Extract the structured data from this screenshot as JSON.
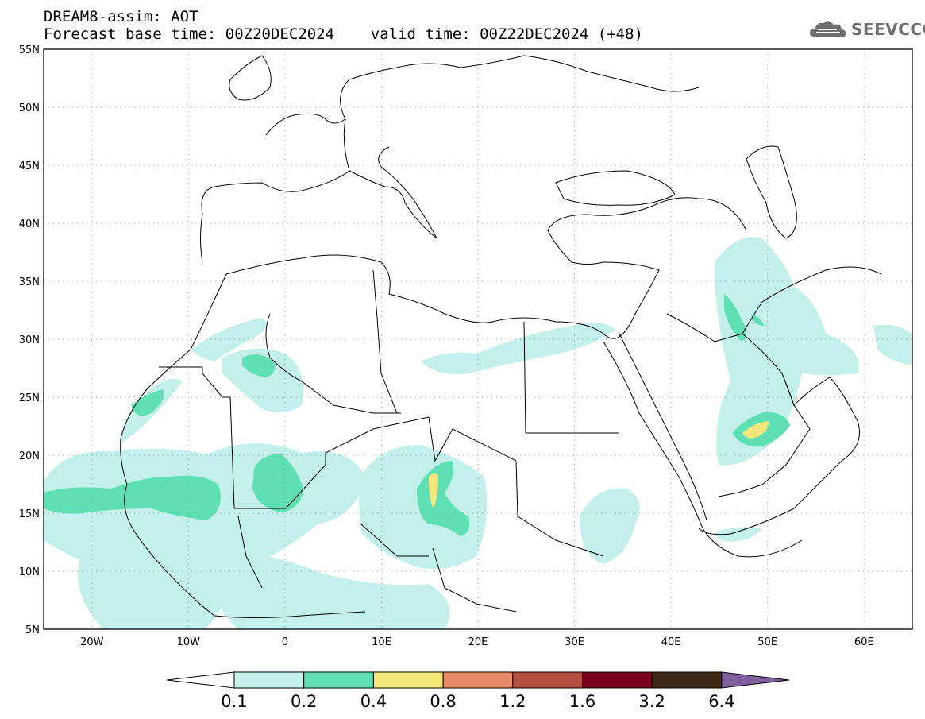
{
  "title": {
    "line1": "DREAM8-assim: AOT",
    "line2": "Forecast base time: 00Z20DEC2024    valid time: 00Z22DEC2024 (+48)"
  },
  "logo": {
    "text": "SEEVCCC",
    "icon": "cloud-logo-icon"
  },
  "map": {
    "lon_range": [
      -25,
      65
    ],
    "lat_range": [
      5,
      55
    ],
    "lat_labels": [
      "55N",
      "50N",
      "45N",
      "40N",
      "35N",
      "30N",
      "25N",
      "20N",
      "15N",
      "10N",
      "5N"
    ],
    "lon_labels": [
      "20W",
      "10W",
      "0",
      "10E",
      "20E",
      "30E",
      "40E",
      "50E",
      "60E"
    ],
    "gridlines": "dotted"
  },
  "colorbar": {
    "labels": [
      "0.1",
      "0.2",
      "0.4",
      "0.8",
      "1.2",
      "1.6",
      "3.2",
      "6.4"
    ],
    "colors": [
      "#c3f0ea",
      "#5fe0b4",
      "#f3e77c",
      "#e58a64",
      "#b3503f",
      "#7c0020",
      "#3e2a17"
    ],
    "extend_high_color": "#7f5f9f"
  }
}
